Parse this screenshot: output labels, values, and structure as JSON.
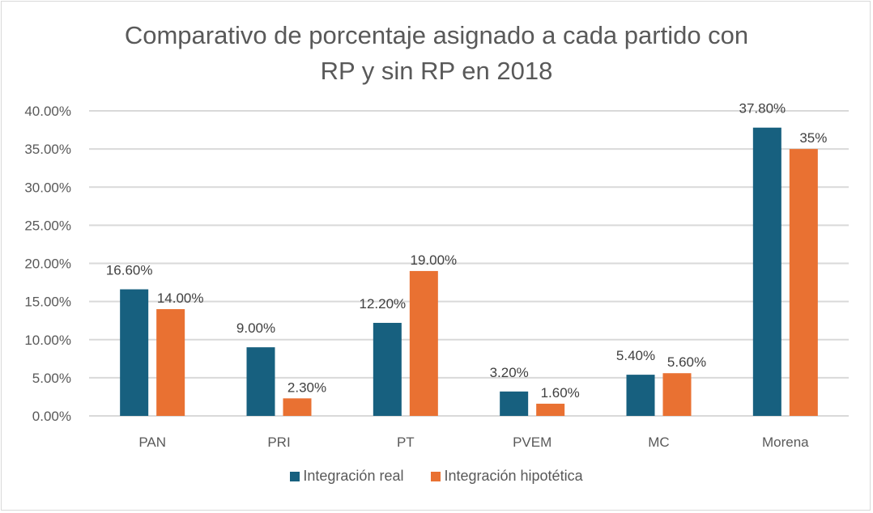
{
  "chart_data": {
    "type": "bar",
    "title": "Comparativo de porcentaje asignado a cada partido con RP y sin RP en 2018",
    "title_lines": [
      "Comparativo de porcentaje asignado a cada partido con",
      "RP y sin RP en 2018"
    ],
    "xlabel": "",
    "ylabel": "",
    "categories": [
      "PAN",
      "PRI",
      "PT",
      "PVEM",
      "MC",
      "Morena"
    ],
    "series": [
      {
        "name": "Integración real",
        "color": "#17607f",
        "values": [
          16.6,
          9.0,
          12.2,
          3.2,
          5.4,
          37.8
        ],
        "labels": [
          "16.60%",
          "9.00%",
          "12.20%",
          "3.20%",
          "5.40%",
          "37.80%"
        ]
      },
      {
        "name": "Integración hipotética",
        "color": "#e97132",
        "values": [
          14.0,
          2.3,
          19.0,
          1.6,
          5.6,
          35.0
        ],
        "labels": [
          "14.00%",
          "2.30%",
          "19.00%",
          "1.60%",
          "5.60%",
          "35%"
        ]
      }
    ],
    "ylim": [
      0,
      40
    ],
    "yticks": [
      0,
      5,
      10,
      15,
      20,
      25,
      30,
      35,
      40
    ],
    "ytick_labels": [
      "0.00%",
      "5.00%",
      "10.00%",
      "15.00%",
      "20.00%",
      "25.00%",
      "30.00%",
      "35.00%",
      "40.00%"
    ],
    "grid": true,
    "legend_position": "bottom"
  }
}
